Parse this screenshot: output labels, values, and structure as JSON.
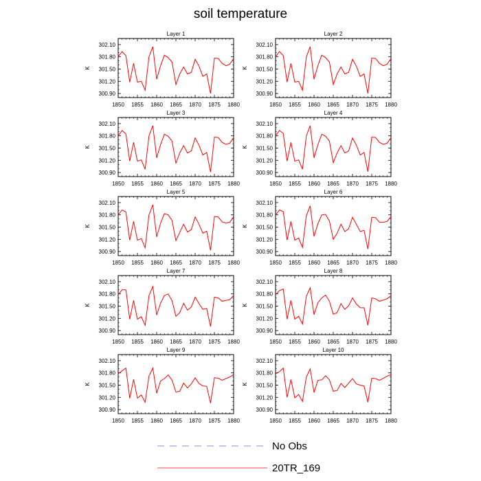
{
  "title": "soil temperature",
  "chart_data": {
    "type": "line",
    "title": "soil temperature",
    "ylabel": "K",
    "x_ticks": [
      "1850",
      "1855",
      "1860",
      "1865",
      "1870",
      "1875",
      "1880"
    ],
    "y_ticks": [
      "300.90",
      "301.20",
      "301.50",
      "301.80",
      "302.10"
    ],
    "xlim": [
      1850,
      1880
    ],
    "ylim": [
      300.8,
      302.25
    ],
    "grid": false,
    "legend_position": "bottom",
    "legend": [
      {
        "name": "No Obs",
        "color": "#6666cc",
        "style": "dashed"
      },
      {
        "name": "20TR_169",
        "color": "#ff0000",
        "style": "solid"
      }
    ],
    "line_color": "#ff0000",
    "years": [
      1850,
      1851,
      1852,
      1853,
      1854,
      1855,
      1856,
      1857,
      1858,
      1859,
      1860,
      1861,
      1862,
      1863,
      1864,
      1865,
      1866,
      1867,
      1868,
      1869,
      1870,
      1871,
      1872,
      1873,
      1874,
      1875,
      1876,
      1877,
      1878,
      1879,
      1880
    ],
    "panels": [
      {
        "title": "Layer 1",
        "values": [
          301.8,
          301.93,
          301.83,
          301.18,
          301.64,
          301.18,
          301.2,
          300.98,
          301.8,
          302.05,
          301.25,
          301.58,
          301.84,
          301.78,
          301.67,
          301.12,
          301.38,
          301.55,
          301.38,
          301.42,
          301.74,
          301.57,
          301.32,
          301.38,
          300.9,
          301.77,
          301.76,
          301.64,
          301.58,
          301.62,
          301.76
        ]
      },
      {
        "title": "Layer 2",
        "values": [
          301.8,
          301.93,
          301.83,
          301.18,
          301.64,
          301.18,
          301.2,
          300.98,
          301.8,
          302.05,
          301.25,
          301.58,
          301.84,
          301.78,
          301.67,
          301.12,
          301.38,
          301.55,
          301.38,
          301.42,
          301.74,
          301.57,
          301.32,
          301.38,
          300.9,
          301.77,
          301.76,
          301.64,
          301.58,
          301.62,
          301.76
        ]
      },
      {
        "title": "Layer 3",
        "values": [
          301.8,
          301.93,
          301.85,
          301.18,
          301.64,
          301.18,
          301.21,
          300.98,
          301.8,
          302.05,
          301.26,
          301.58,
          301.84,
          301.79,
          301.67,
          301.13,
          301.38,
          301.56,
          301.38,
          301.43,
          301.75,
          301.57,
          301.33,
          301.39,
          300.91,
          301.77,
          301.76,
          301.64,
          301.59,
          301.62,
          301.76
        ]
      },
      {
        "title": "Layer 4",
        "values": [
          301.8,
          301.93,
          301.86,
          301.18,
          301.64,
          301.18,
          301.21,
          300.98,
          301.8,
          302.05,
          301.26,
          301.58,
          301.84,
          301.79,
          301.67,
          301.14,
          301.38,
          301.56,
          301.38,
          301.43,
          301.75,
          301.57,
          301.33,
          301.39,
          300.92,
          301.77,
          301.76,
          301.64,
          301.59,
          301.62,
          301.76
        ]
      },
      {
        "title": "Layer 5",
        "values": [
          301.8,
          301.92,
          301.87,
          301.18,
          301.64,
          301.18,
          301.22,
          300.99,
          301.8,
          302.05,
          301.26,
          301.59,
          301.83,
          301.8,
          301.66,
          301.17,
          301.37,
          301.57,
          301.38,
          301.44,
          301.75,
          301.57,
          301.35,
          301.4,
          300.93,
          301.76,
          301.75,
          301.63,
          301.6,
          301.62,
          301.76
        ]
      },
      {
        "title": "Layer 6",
        "values": [
          301.8,
          301.92,
          301.88,
          301.18,
          301.64,
          301.18,
          301.23,
          301.0,
          301.78,
          302.02,
          301.27,
          301.58,
          301.8,
          301.81,
          301.65,
          301.2,
          301.35,
          301.57,
          301.39,
          301.46,
          301.74,
          301.57,
          301.39,
          301.42,
          300.96,
          301.74,
          301.73,
          301.62,
          301.62,
          301.64,
          301.76
        ]
      },
      {
        "title": "Layer 7",
        "values": [
          301.78,
          301.9,
          301.9,
          301.18,
          301.64,
          301.18,
          301.24,
          301.03,
          301.76,
          301.98,
          301.28,
          301.57,
          301.76,
          301.8,
          301.63,
          301.25,
          301.34,
          301.57,
          301.4,
          301.48,
          301.72,
          301.56,
          301.42,
          301.44,
          301.0,
          301.72,
          301.7,
          301.62,
          301.64,
          301.66,
          301.76
        ]
      },
      {
        "title": "Layer 8",
        "values": [
          301.78,
          301.88,
          301.92,
          301.18,
          301.64,
          301.18,
          301.25,
          301.06,
          301.74,
          301.95,
          301.29,
          301.58,
          301.7,
          301.77,
          301.62,
          301.3,
          301.34,
          301.56,
          301.42,
          301.51,
          301.7,
          301.55,
          301.46,
          301.46,
          301.03,
          301.7,
          301.68,
          301.62,
          301.65,
          301.68,
          301.76
        ]
      },
      {
        "title": "Layer 9",
        "values": [
          301.78,
          301.85,
          301.92,
          301.18,
          301.64,
          301.18,
          301.26,
          301.08,
          301.72,
          301.92,
          301.3,
          301.6,
          301.66,
          301.75,
          301.62,
          301.33,
          301.35,
          301.55,
          301.43,
          301.53,
          301.68,
          301.54,
          301.48,
          301.47,
          301.06,
          301.68,
          301.67,
          301.62,
          301.66,
          301.7,
          301.76
        ]
      },
      {
        "title": "Layer 10",
        "values": [
          301.78,
          301.83,
          301.92,
          301.2,
          301.64,
          301.19,
          301.27,
          301.1,
          301.7,
          301.9,
          301.32,
          301.62,
          301.63,
          301.73,
          301.63,
          301.35,
          301.37,
          301.54,
          301.44,
          301.55,
          301.66,
          301.53,
          301.5,
          301.48,
          301.08,
          301.67,
          301.66,
          301.62,
          301.67,
          301.72,
          301.76
        ]
      }
    ]
  }
}
